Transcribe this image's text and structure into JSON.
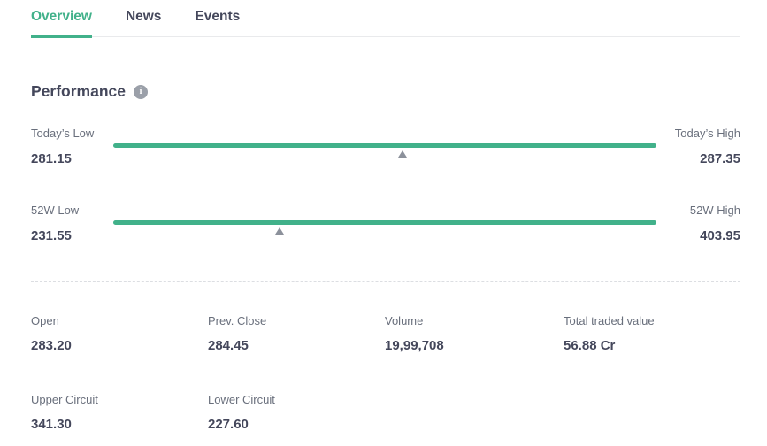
{
  "colors": {
    "accent_green": "#41b18a",
    "text_dark": "#44475b",
    "text_gray": "#696f7c",
    "marker_gray": "#8c919b",
    "divider": "#dcdee2",
    "tab_border": "#e9eaec",
    "info_icon_bg": "#9ba0a9"
  },
  "tabs": [
    {
      "label": "Overview",
      "active": true
    },
    {
      "label": "News",
      "active": false
    },
    {
      "label": "Events",
      "active": false
    }
  ],
  "performance": {
    "title": "Performance",
    "info_icon_glyph": "i",
    "ranges": [
      {
        "low_label": "Today’s Low",
        "low_value": "281.15",
        "high_label": "Today’s High",
        "high_value": "287.35",
        "marker_percent": 53.3
      },
      {
        "low_label": "52W Low",
        "low_value": "231.55",
        "high_label": "52W High",
        "high_value": "403.95",
        "marker_percent": 30.7
      }
    ],
    "stats": [
      {
        "label": "Open",
        "value": "283.20"
      },
      {
        "label": "Prev. Close",
        "value": "284.45"
      },
      {
        "label": "Volume",
        "value": "19,99,708"
      },
      {
        "label": "Total traded value",
        "value": "56.88 Cr"
      },
      {
        "label": "Upper Circuit",
        "value": "341.30"
      },
      {
        "label": "Lower Circuit",
        "value": "227.60"
      }
    ]
  }
}
